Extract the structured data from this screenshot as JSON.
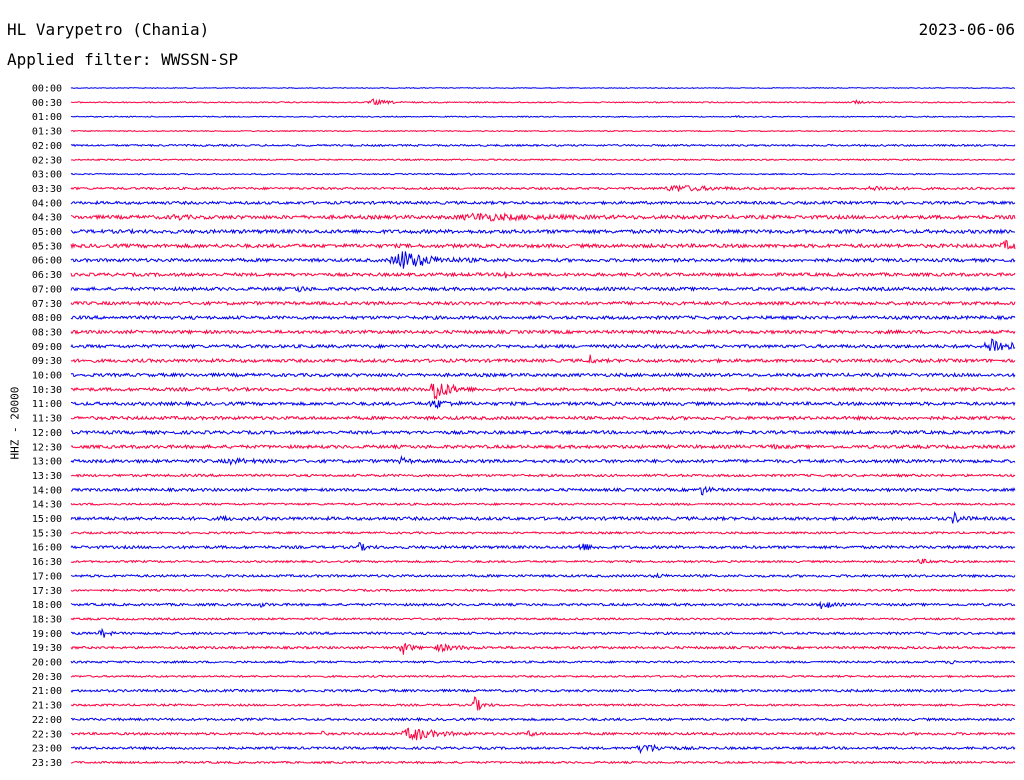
{
  "header": {
    "station": "HL Varypetro (Chania)",
    "date": "2023-06-06",
    "filter": "Applied filter: WWSSN-SP"
  },
  "colors": {
    "even": "#0000ee",
    "odd": "#ff0040"
  },
  "chart_data": {
    "type": "line",
    "title": "HL Varypetro (Chania)",
    "subtitle": "Applied filter: WWSSN-SP",
    "ylabel": "HHZ - 20000",
    "xlabel": "",
    "series": [
      {
        "label": "00:00",
        "noise": 0.4,
        "events": []
      },
      {
        "label": "00:30",
        "noise": 0.6,
        "events": [
          {
            "t": 0.32,
            "a": 3,
            "d": 0.02
          },
          {
            "t": 0.83,
            "a": 2,
            "d": 0.01
          }
        ]
      },
      {
        "label": "01:00",
        "noise": 0.5,
        "events": [
          {
            "t": 0.705,
            "a": 2,
            "d": 0.004
          }
        ]
      },
      {
        "label": "01:30",
        "noise": 0.5,
        "events": []
      },
      {
        "label": "02:00",
        "noise": 0.9,
        "events": []
      },
      {
        "label": "02:30",
        "noise": 0.7,
        "events": []
      },
      {
        "label": "03:00",
        "noise": 0.6,
        "events": [
          {
            "t": 0.42,
            "a": 2,
            "d": 0.004
          }
        ]
      },
      {
        "label": "03:30",
        "noise": 1.1,
        "events": [
          {
            "t": 0.64,
            "a": 3,
            "d": 0.05
          },
          {
            "t": 0.85,
            "a": 2,
            "d": 0.03
          }
        ]
      },
      {
        "label": "04:00",
        "noise": 1.4,
        "events": []
      },
      {
        "label": "04:30",
        "noise": 1.8,
        "events": [
          {
            "t": 0.11,
            "a": 3,
            "d": 0.01
          },
          {
            "t": 0.43,
            "a": 3,
            "d": 0.08
          }
        ]
      },
      {
        "label": "05:00",
        "noise": 1.8,
        "events": []
      },
      {
        "label": "05:30",
        "noise": 1.8,
        "events": [
          {
            "t": 0.99,
            "a": 4,
            "d": 0.02
          }
        ]
      },
      {
        "label": "06:00",
        "noise": 1.6,
        "events": [
          {
            "t": 0.35,
            "a": 10,
            "d": 0.04
          }
        ]
      },
      {
        "label": "06:30",
        "noise": 1.6,
        "events": [
          {
            "t": 0.46,
            "a": 4,
            "d": 0.008
          }
        ]
      },
      {
        "label": "07:00",
        "noise": 1.6,
        "events": [
          {
            "t": 0.24,
            "a": 3,
            "d": 0.01
          }
        ]
      },
      {
        "label": "07:30",
        "noise": 1.6,
        "events": []
      },
      {
        "label": "08:00",
        "noise": 1.6,
        "events": []
      },
      {
        "label": "08:30",
        "noise": 1.6,
        "events": []
      },
      {
        "label": "09:00",
        "noise": 1.6,
        "events": [
          {
            "t": 0.975,
            "a": 9,
            "d": 0.025
          }
        ]
      },
      {
        "label": "09:30",
        "noise": 1.6,
        "events": [
          {
            "t": 0.55,
            "a": 6,
            "d": 0.004
          }
        ]
      },
      {
        "label": "10:00",
        "noise": 1.6,
        "events": []
      },
      {
        "label": "10:30",
        "noise": 1.6,
        "events": [
          {
            "t": 0.385,
            "a": 13,
            "d": 0.02
          }
        ]
      },
      {
        "label": "11:00",
        "noise": 1.6,
        "events": [
          {
            "t": 0.385,
            "a": 4,
            "d": 0.02
          }
        ]
      },
      {
        "label": "11:30",
        "noise": 1.6,
        "events": []
      },
      {
        "label": "12:00",
        "noise": 1.6,
        "events": []
      },
      {
        "label": "12:30",
        "noise": 1.6,
        "events": [
          {
            "t": 0.74,
            "a": 2,
            "d": 0.01
          }
        ]
      },
      {
        "label": "13:00",
        "noise": 1.6,
        "events": [
          {
            "t": 0.17,
            "a": 2,
            "d": 0.03
          },
          {
            "t": 0.35,
            "a": 3,
            "d": 0.01
          }
        ]
      },
      {
        "label": "13:30",
        "noise": 1.2,
        "events": []
      },
      {
        "label": "14:00",
        "noise": 1.4,
        "events": [
          {
            "t": 0.668,
            "a": 5,
            "d": 0.01
          }
        ]
      },
      {
        "label": "14:30",
        "noise": 1.0,
        "events": []
      },
      {
        "label": "15:00",
        "noise": 1.6,
        "events": [
          {
            "t": 0.16,
            "a": 2,
            "d": 0.01
          },
          {
            "t": 0.935,
            "a": 6,
            "d": 0.01
          }
        ]
      },
      {
        "label": "15:30",
        "noise": 1.0,
        "events": []
      },
      {
        "label": "16:00",
        "noise": 1.4,
        "events": [
          {
            "t": 0.305,
            "a": 4,
            "d": 0.01
          },
          {
            "t": 0.54,
            "a": 5,
            "d": 0.012
          }
        ]
      },
      {
        "label": "16:30",
        "noise": 1.0,
        "events": [
          {
            "t": 0.9,
            "a": 2,
            "d": 0.02
          }
        ]
      },
      {
        "label": "17:00",
        "noise": 1.2,
        "events": [
          {
            "t": 0.62,
            "a": 2,
            "d": 0.01
          }
        ]
      },
      {
        "label": "17:30",
        "noise": 1.0,
        "events": []
      },
      {
        "label": "18:00",
        "noise": 1.2,
        "events": [
          {
            "t": 0.2,
            "a": 2,
            "d": 0.01
          },
          {
            "t": 0.795,
            "a": 7,
            "d": 0.01
          }
        ]
      },
      {
        "label": "18:30",
        "noise": 1.0,
        "events": []
      },
      {
        "label": "19:00",
        "noise": 1.2,
        "events": [
          {
            "t": 0.032,
            "a": 6,
            "d": 0.008
          }
        ]
      },
      {
        "label": "19:30",
        "noise": 1.2,
        "events": [
          {
            "t": 0.35,
            "a": 9,
            "d": 0.01
          },
          {
            "t": 0.39,
            "a": 3,
            "d": 0.03
          }
        ]
      },
      {
        "label": "20:00",
        "noise": 1.0,
        "events": [
          {
            "t": 0.93,
            "a": 2,
            "d": 0.01
          }
        ]
      },
      {
        "label": "20:30",
        "noise": 0.9,
        "events": []
      },
      {
        "label": "21:00",
        "noise": 1.2,
        "events": []
      },
      {
        "label": "21:30",
        "noise": 1.0,
        "events": [
          {
            "t": 0.427,
            "a": 9,
            "d": 0.01
          }
        ]
      },
      {
        "label": "22:00",
        "noise": 1.2,
        "events": []
      },
      {
        "label": "22:30",
        "noise": 1.2,
        "events": [
          {
            "t": 0.265,
            "a": 3,
            "d": 0.004
          },
          {
            "t": 0.36,
            "a": 8,
            "d": 0.03
          },
          {
            "t": 0.485,
            "a": 3,
            "d": 0.01
          }
        ]
      },
      {
        "label": "23:00",
        "noise": 1.2,
        "events": [
          {
            "t": 0.605,
            "a": 5,
            "d": 0.025
          }
        ]
      },
      {
        "label": "23:30",
        "noise": 1.0,
        "events": []
      }
    ]
  }
}
